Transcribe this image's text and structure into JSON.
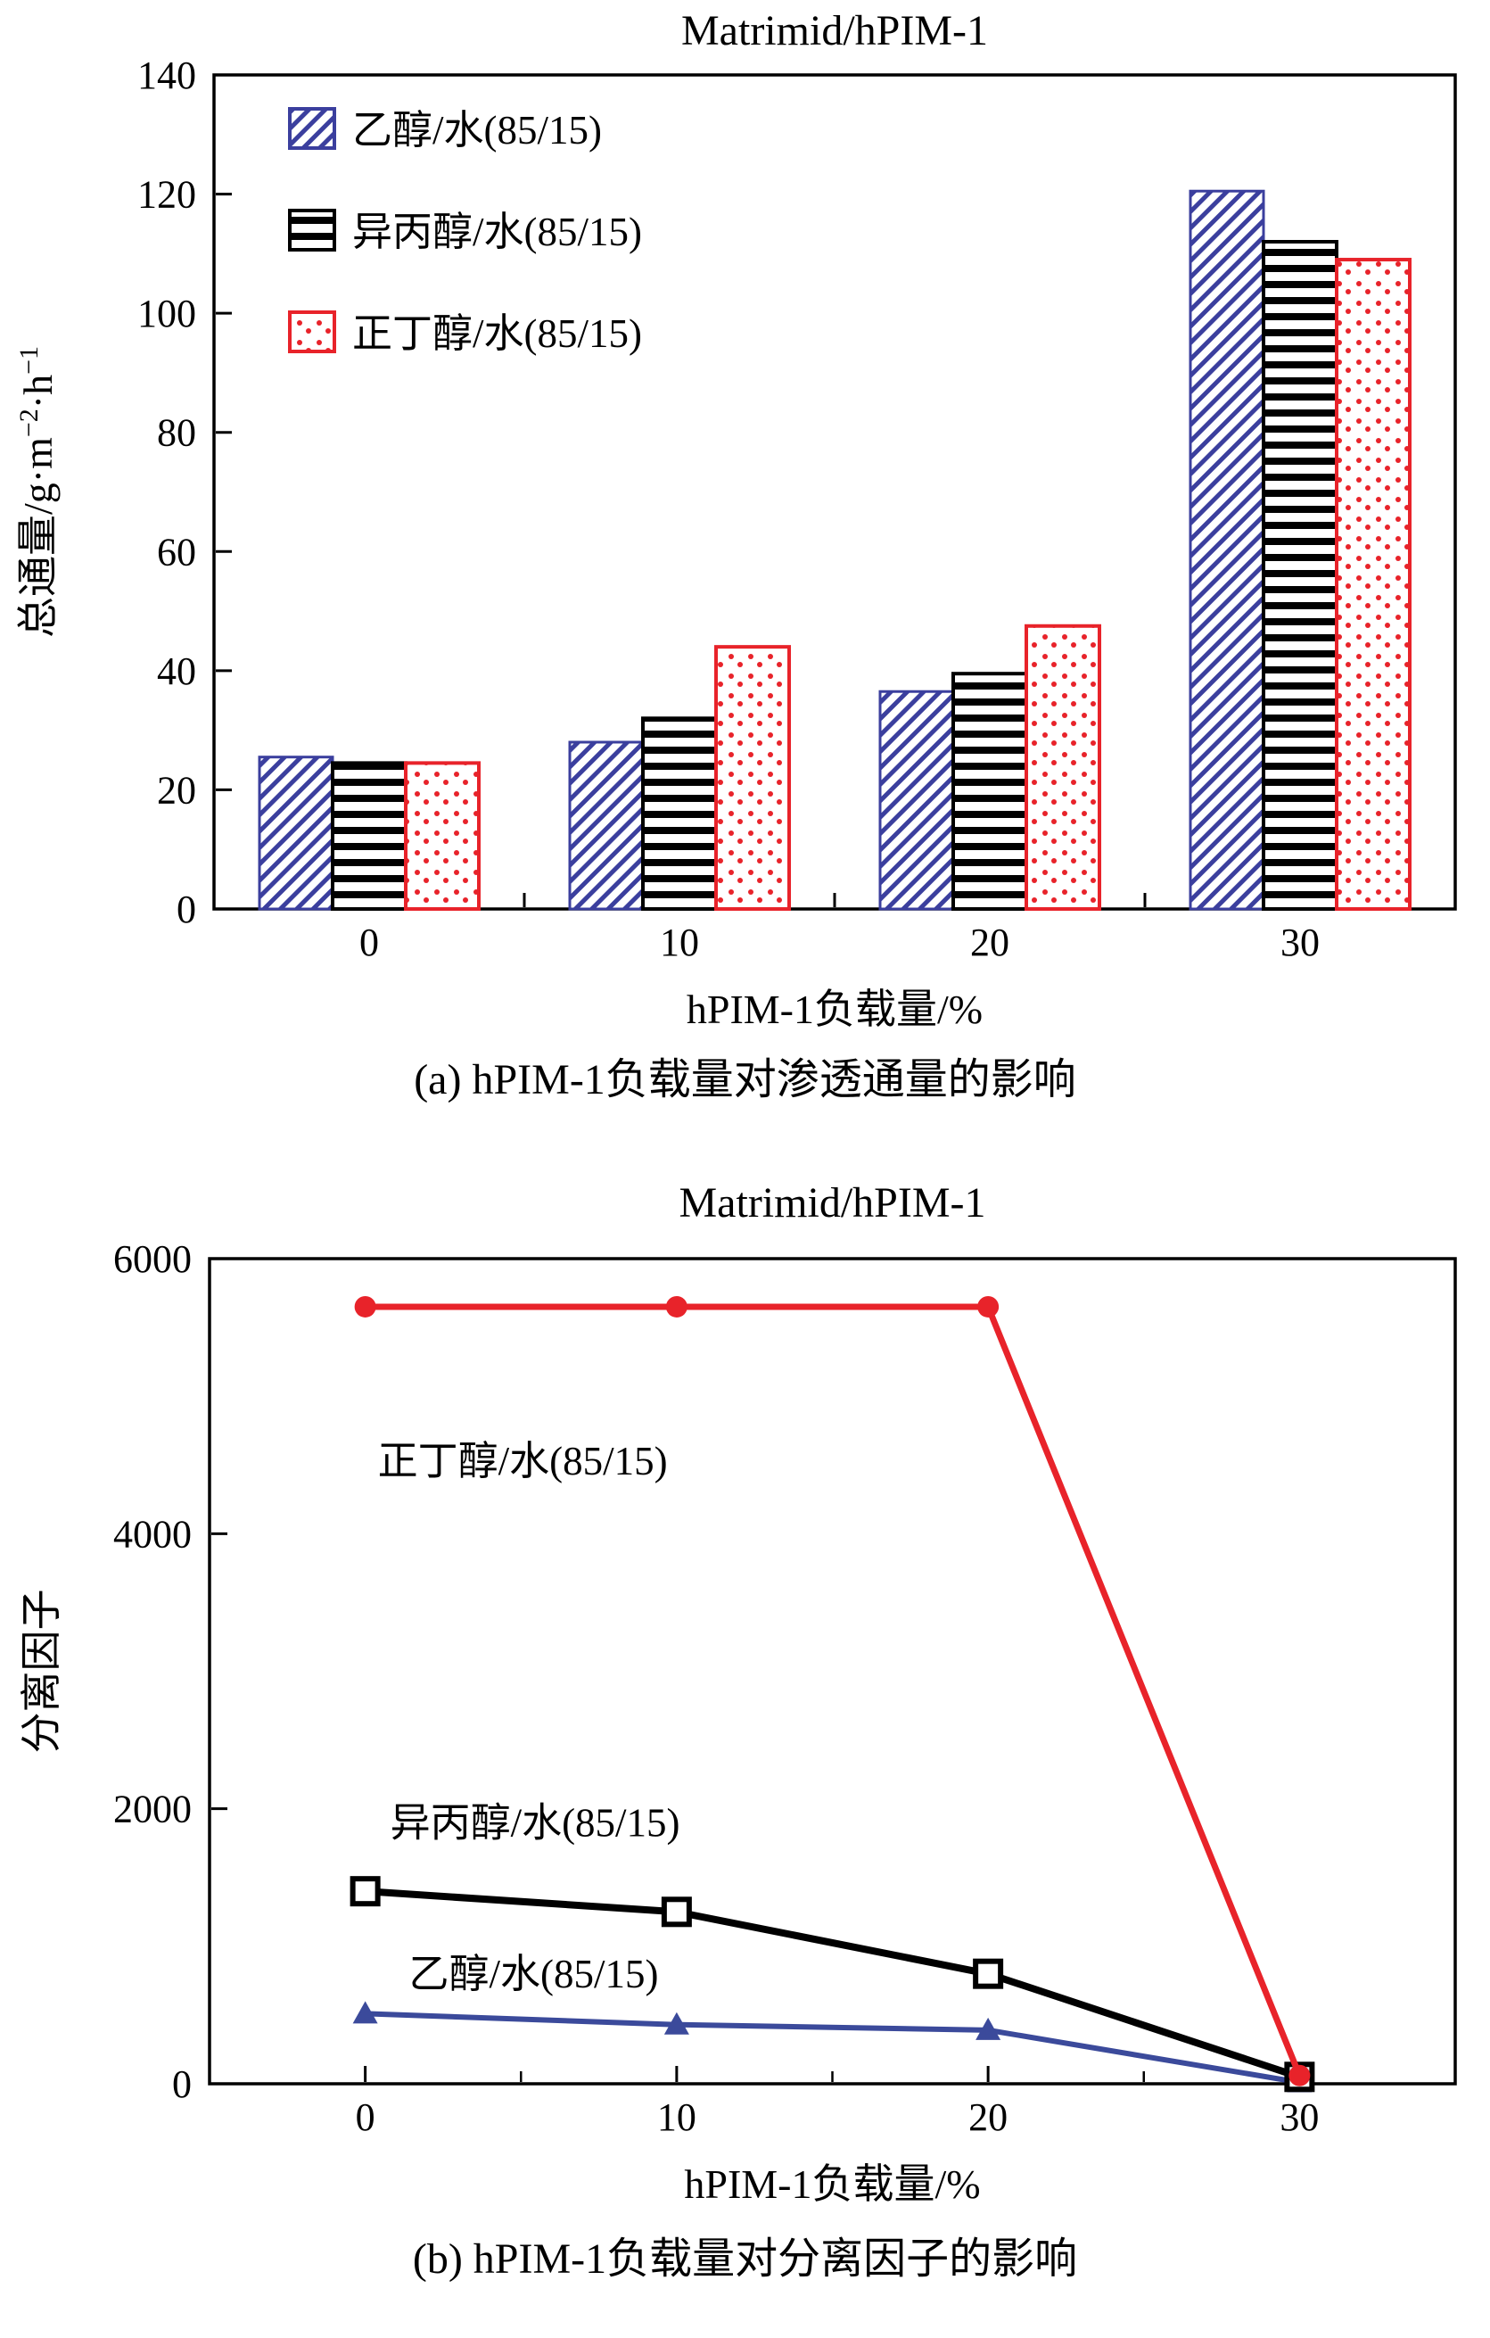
{
  "colors": {
    "ethanol_blue": "#3b3f9e",
    "isopropanol_black": "#000000",
    "butanol_red": "#e8232a",
    "ethanol_line_blue": "#3b4a9b",
    "axis": "#000000",
    "background": "#ffffff"
  },
  "chart_data": [
    {
      "type": "bar",
      "title": "Matrimid/hPIM-1",
      "ylabel": "总通量/g·m⁻²·h⁻¹",
      "ylabel_parts": [
        [
          "总通量/g·m",
          0
        ],
        [
          "−2",
          1
        ],
        [
          "·h",
          0
        ],
        [
          "−1",
          1
        ]
      ],
      "xlabel": "hPIM-1负载量/%",
      "caption": "(a) hPIM-1负载量对渗透通量的影响",
      "categories": [
        "0",
        "10",
        "20",
        "30"
      ],
      "ylim": [
        0,
        140
      ],
      "yticks": [
        0,
        20,
        40,
        60,
        80,
        100,
        120,
        140
      ],
      "legend_position": "top-left",
      "grid": false,
      "series": [
        {
          "name": "乙醇/水(85/15)",
          "color": "#3b3f9e",
          "pattern": "diagonal-hatch",
          "values": [
            25.5,
            28,
            36.5,
            120.5
          ]
        },
        {
          "name": "异丙醇/水(85/15)",
          "color": "#000000",
          "pattern": "horizontal-lines",
          "values": [
            24.5,
            32,
            39.5,
            112
          ]
        },
        {
          "name": "正丁醇/水(85/15)",
          "color": "#e8232a",
          "pattern": "dots",
          "values": [
            24.5,
            44,
            47.5,
            109
          ]
        }
      ]
    },
    {
      "type": "line",
      "title": "Matrimid/hPIM-1",
      "ylabel": "分离因子",
      "xlabel": "hPIM-1负载量/%",
      "caption": "(b) hPIM-1负载量对分离因子的影响",
      "x": [
        "0",
        "10",
        "20",
        "30"
      ],
      "ylim": [
        0,
        6000
      ],
      "yticks": [
        0,
        2000,
        4000,
        6000
      ],
      "grid": false,
      "series": [
        {
          "name": "正丁醇/水(85/15)",
          "color": "#e8232a",
          "marker": "filled-circle",
          "values": [
            5650,
            5650,
            5650,
            60
          ]
        },
        {
          "name": "异丙醇/水(85/15)",
          "color": "#000000",
          "marker": "open-square",
          "values": [
            1400,
            1250,
            800,
            50
          ]
        },
        {
          "name": "乙醇/水(85/15)",
          "color": "#3b4a9b",
          "marker": "filled-triangle",
          "values": [
            510,
            430,
            390,
            10
          ]
        }
      ],
      "annotations": [
        {
          "text": "正丁醇/水(85/15)",
          "fx": 0.135,
          "y": 4430
        },
        {
          "text": "异丙醇/水(85/15)",
          "fx": 0.145,
          "y": 1800
        },
        {
          "text": "乙醇/水(85/15)",
          "fx": 0.16,
          "y": 700
        }
      ]
    }
  ]
}
